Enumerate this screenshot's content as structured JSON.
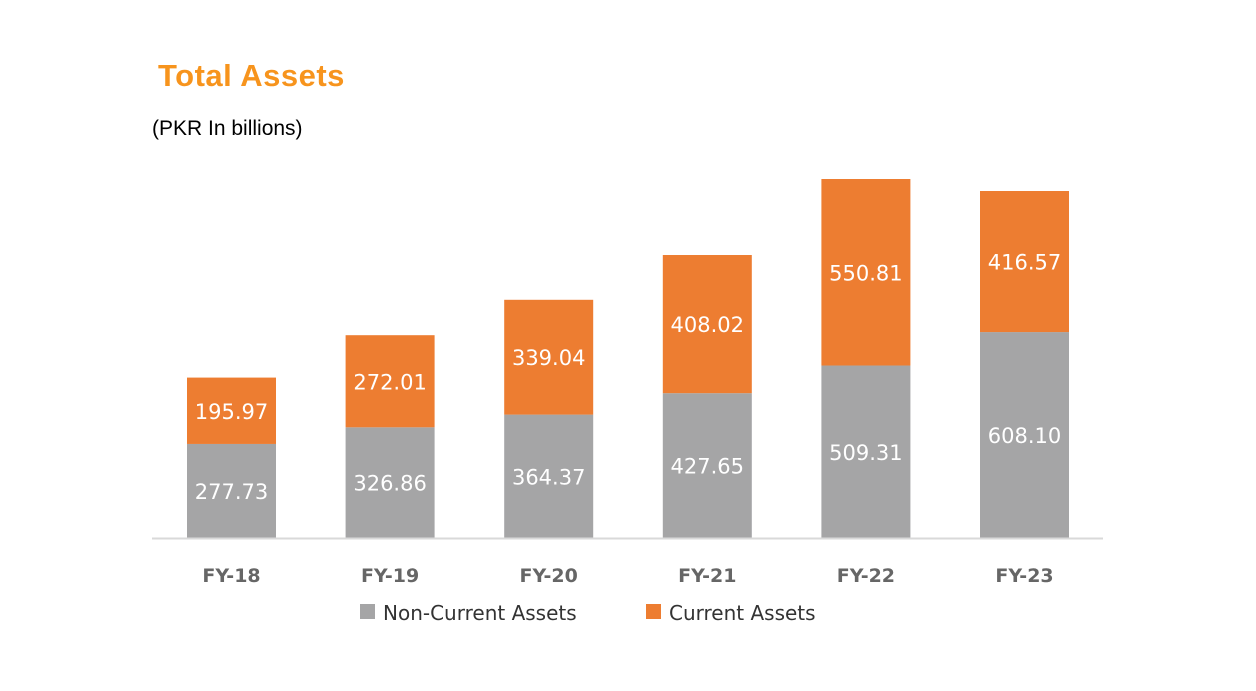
{
  "chart_data": {
    "type": "bar",
    "stacked": true,
    "title": "Total Assets",
    "subtitle": "(PKR In billions)",
    "categories": [
      "FY-18",
      "FY-19",
      "FY-20",
      "FY-21",
      "FY-22",
      "FY-23"
    ],
    "series": [
      {
        "name": "Non-Current Assets",
        "color": "#a5a5a6",
        "values": [
          277.73,
          326.86,
          364.37,
          427.65,
          509.31,
          608.1
        ]
      },
      {
        "name": "Current Assets",
        "color": "#ed7d31",
        "values": [
          195.97,
          272.01,
          339.04,
          408.02,
          550.81,
          416.57
        ]
      }
    ],
    "ylim": [
      0,
      1060.12
    ],
    "grid": false,
    "legend": "bottom"
  }
}
